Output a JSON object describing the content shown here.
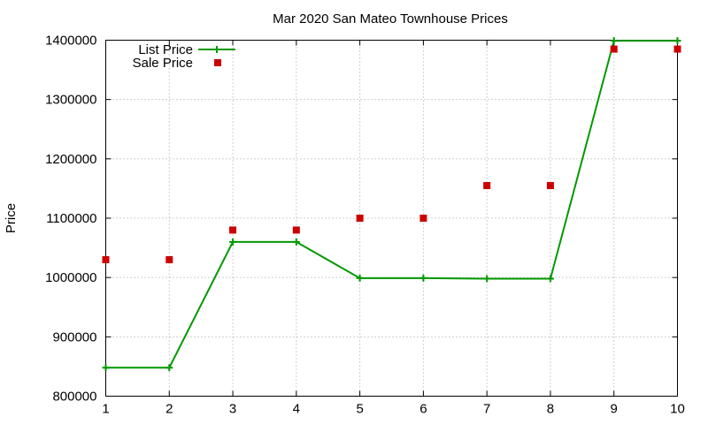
{
  "chart_data": {
    "type": "line",
    "title": "Mar 2020 San Mateo Townhouse Prices",
    "xlabel": "",
    "ylabel": "Price",
    "x": [
      1,
      2,
      3,
      4,
      5,
      6,
      7,
      8,
      9,
      10
    ],
    "x_ticks": [
      "1",
      "2",
      "3",
      "4",
      "5",
      "6",
      "7",
      "8",
      "9",
      "10"
    ],
    "y_ticks": [
      "800000",
      "900000",
      "1000000",
      "1100000",
      "1200000",
      "1300000",
      "1400000"
    ],
    "xlim": [
      1,
      10
    ],
    "ylim": [
      800000,
      1400000
    ],
    "grid": true,
    "legend_position": "top-left",
    "series": [
      {
        "name": "List Price",
        "style": "line-with-plus-markers",
        "color": "#009900",
        "values": [
          848000,
          848000,
          1060000,
          1060000,
          999000,
          999000,
          998000,
          998000,
          1399000,
          1399000
        ]
      },
      {
        "name": "Sale Price",
        "style": "square-markers",
        "color": "#cc0000",
        "values": [
          1030000,
          1030000,
          1080000,
          1080000,
          1100000,
          1100000,
          1155000,
          1155000,
          1385000,
          1385000
        ]
      }
    ]
  }
}
